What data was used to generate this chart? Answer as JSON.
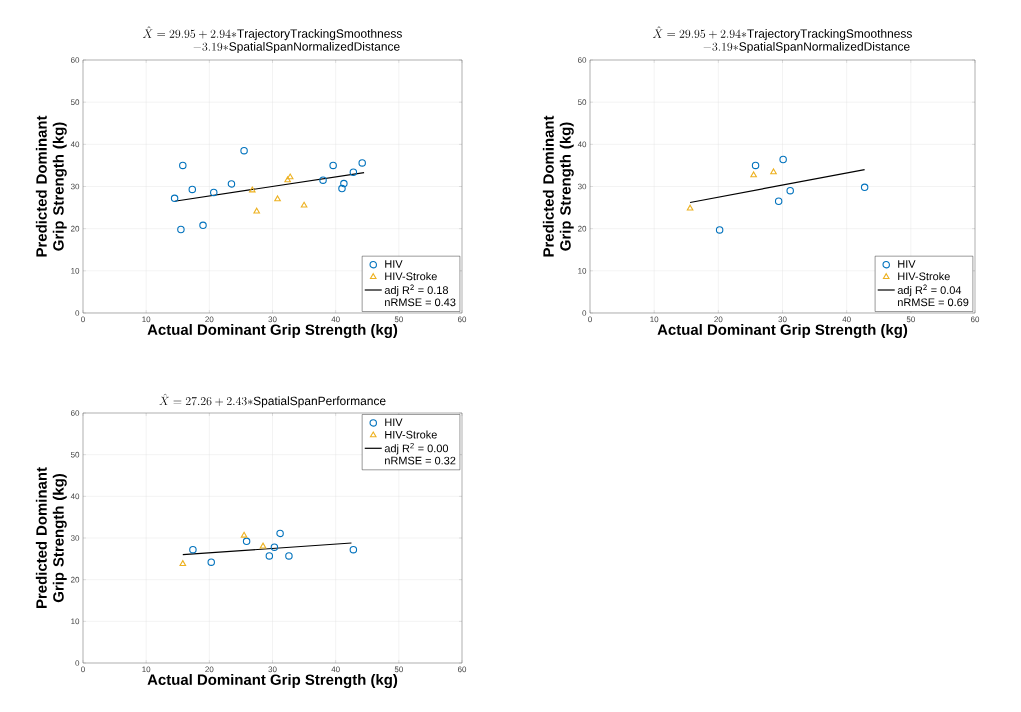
{
  "chart_data": [
    {
      "type": "scatter",
      "title": "\\begin{array}{c}\\hat{X} = 29.95 + 2.94{*}\\mathrm{TrajectoryTrackingSmoothness}\\\\ \\qquad\\qquad - 3.19{*}\\mathrm{SpatialSpanNormalizedDistance}\\end{array}",
      "xlabel": "Actual Dominant Grip Strength (kg)",
      "ylabel": "Predicted Dominant Grip Strength (kg)",
      "xlim": [
        0,
        60
      ],
      "ylim": [
        0,
        60
      ],
      "xticks": [
        0,
        10,
        20,
        30,
        40,
        50,
        60
      ],
      "yticks": [
        0,
        10,
        20,
        30,
        40,
        50,
        60
      ],
      "grid": true,
      "legend": "bottom right",
      "annotations": [
        "nRMSE = 0.43"
      ],
      "series": [
        {
          "name": "HIV",
          "marker": "circle",
          "color": "#0072bd",
          "x": [
            14.5,
            15.8,
            15.5,
            17.3,
            19.0,
            20.7,
            23.5,
            25.5,
            38.0,
            39.6,
            41.0,
            41.3,
            42.8,
            44.2
          ],
          "values": [
            27.2,
            35.0,
            19.8,
            29.3,
            20.8,
            28.6,
            30.6,
            38.5,
            31.5,
            35.0,
            29.5,
            30.7,
            33.4,
            35.6
          ]
        },
        {
          "name": "HIV-Stroke",
          "marker": "triangle",
          "color": "#edb120",
          "x": [
            26.8,
            27.5,
            30.8,
            32.4,
            32.8,
            35.0
          ],
          "values": [
            29.1,
            24.1,
            27.0,
            31.5,
            32.2,
            25.5
          ]
        },
        {
          "name": "adj R$^{2}$  = 0.18",
          "type": "line",
          "marker": "none",
          "color": "#000000",
          "x": [
            14.5,
            44.5
          ],
          "values": [
            26.5,
            33.3
          ]
        }
      ]
    },
    {
      "type": "scatter",
      "title": "\\begin{array}{c}\\hat{X} = 29.95 + 2.94{*}\\mathrm{TrajectoryTrackingSmoothness}\\\\ \\qquad\\qquad - 3.19{*}\\mathrm{SpatialSpanNormalizedDistance}\\end{array}",
      "xlabel": "Actual Dominant Grip Strength (kg)",
      "ylabel": "Predicted Dominant Grip Strength (kg)",
      "xlim": [
        0,
        60
      ],
      "ylim": [
        0,
        60
      ],
      "xticks": [
        0,
        10,
        20,
        30,
        40,
        50,
        60
      ],
      "yticks": [
        0,
        10,
        20,
        30,
        40,
        50,
        60
      ],
      "grid": true,
      "legend": "bottom right",
      "annotations": [
        "nRMSE = 0.69"
      ],
      "series": [
        {
          "name": "HIV",
          "marker": "circle",
          "color": "#0072bd",
          "x": [
            20.2,
            25.8,
            29.4,
            30.1,
            31.2,
            42.8
          ],
          "values": [
            19.7,
            35.0,
            26.5,
            36.4,
            29.0,
            29.8
          ]
        },
        {
          "name": "HIV-Stroke",
          "marker": "triangle",
          "color": "#edb120",
          "x": [
            15.6,
            25.5,
            28.6
          ],
          "values": [
            24.8,
            32.7,
            33.4
          ]
        },
        {
          "name": "adj R$^{2}$  = 0.04",
          "type": "line",
          "marker": "none",
          "color": "#000000",
          "x": [
            15.6,
            42.8
          ],
          "values": [
            26.2,
            34.0
          ]
        }
      ]
    },
    {
      "type": "scatter",
      "title": "\\hat{X} = 27.26 + 2.43{*}\\mathrm{SpatialSpanPerformance}",
      "xlabel": "Actual Dominant Grip Strength (kg)",
      "ylabel": "Predicted Dominant Grip Strength (kg)",
      "xlim": [
        0,
        60
      ],
      "ylim": [
        0,
        60
      ],
      "xticks": [
        0,
        10,
        20,
        30,
        40,
        50,
        60
      ],
      "yticks": [
        0,
        10,
        20,
        30,
        40,
        50,
        60
      ],
      "grid": true,
      "legend": "top right",
      "annotations": [
        "nRMSE = 0.32"
      ],
      "series": [
        {
          "name": "HIV",
          "marker": "circle",
          "color": "#0072bd",
          "x": [
            17.4,
            20.3,
            25.9,
            29.5,
            30.3,
            31.2,
            32.6,
            42.8
          ],
          "values": [
            27.2,
            24.2,
            29.2,
            25.7,
            27.8,
            31.1,
            25.7,
            27.2
          ]
        },
        {
          "name": "HIV-Stroke",
          "marker": "triangle",
          "color": "#edb120",
          "x": [
            15.8,
            25.5,
            28.5
          ],
          "values": [
            23.8,
            30.6,
            28.0
          ]
        },
        {
          "name": "adj R$^{2}$  = 0.00",
          "type": "line",
          "marker": "none",
          "color": "#000000",
          "x": [
            15.8,
            42.5
          ],
          "values": [
            26.0,
            28.8
          ]
        }
      ]
    }
  ]
}
